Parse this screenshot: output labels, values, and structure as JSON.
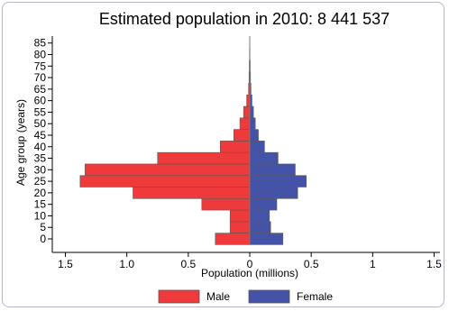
{
  "chart_data": {
    "type": "bar",
    "orientation": "horizontal",
    "title": "Estimated population in 2010: 8 441 537",
    "xlabel": "Population (millions)",
    "ylabel": "Age group (years)",
    "xlim": [
      -1.5,
      1.5
    ],
    "x_ticks": [
      -1.5,
      -1,
      -0.5,
      0,
      0.5,
      1,
      1.5
    ],
    "x_tick_labels": [
      "1.5",
      "1.0",
      "0.5",
      "0",
      "0.5",
      "1",
      "1.5"
    ],
    "categories": [
      "0",
      "5",
      "10",
      "15",
      "20",
      "25",
      "30",
      "35",
      "40",
      "45",
      "50",
      "55",
      "60",
      "65",
      "70",
      "75",
      "80",
      "85"
    ],
    "series": [
      {
        "name": "Male",
        "color": "#ee3a3a",
        "values": [
          0.28,
          0.16,
          0.16,
          0.39,
          0.95,
          1.38,
          1.34,
          0.75,
          0.24,
          0.13,
          0.08,
          0.05,
          0.025,
          0.01,
          0.006,
          0.004,
          0.002,
          0.001
        ]
      },
      {
        "name": "Female",
        "color": "#4453a8",
        "values": [
          0.27,
          0.17,
          0.16,
          0.22,
          0.39,
          0.46,
          0.37,
          0.23,
          0.12,
          0.07,
          0.045,
          0.03,
          0.018,
          0.01,
          0.006,
          0.004,
          0.002,
          0.001
        ]
      }
    ],
    "legend": {
      "placement": "bottom",
      "items": [
        "Male",
        "Female"
      ]
    },
    "grid": false
  }
}
